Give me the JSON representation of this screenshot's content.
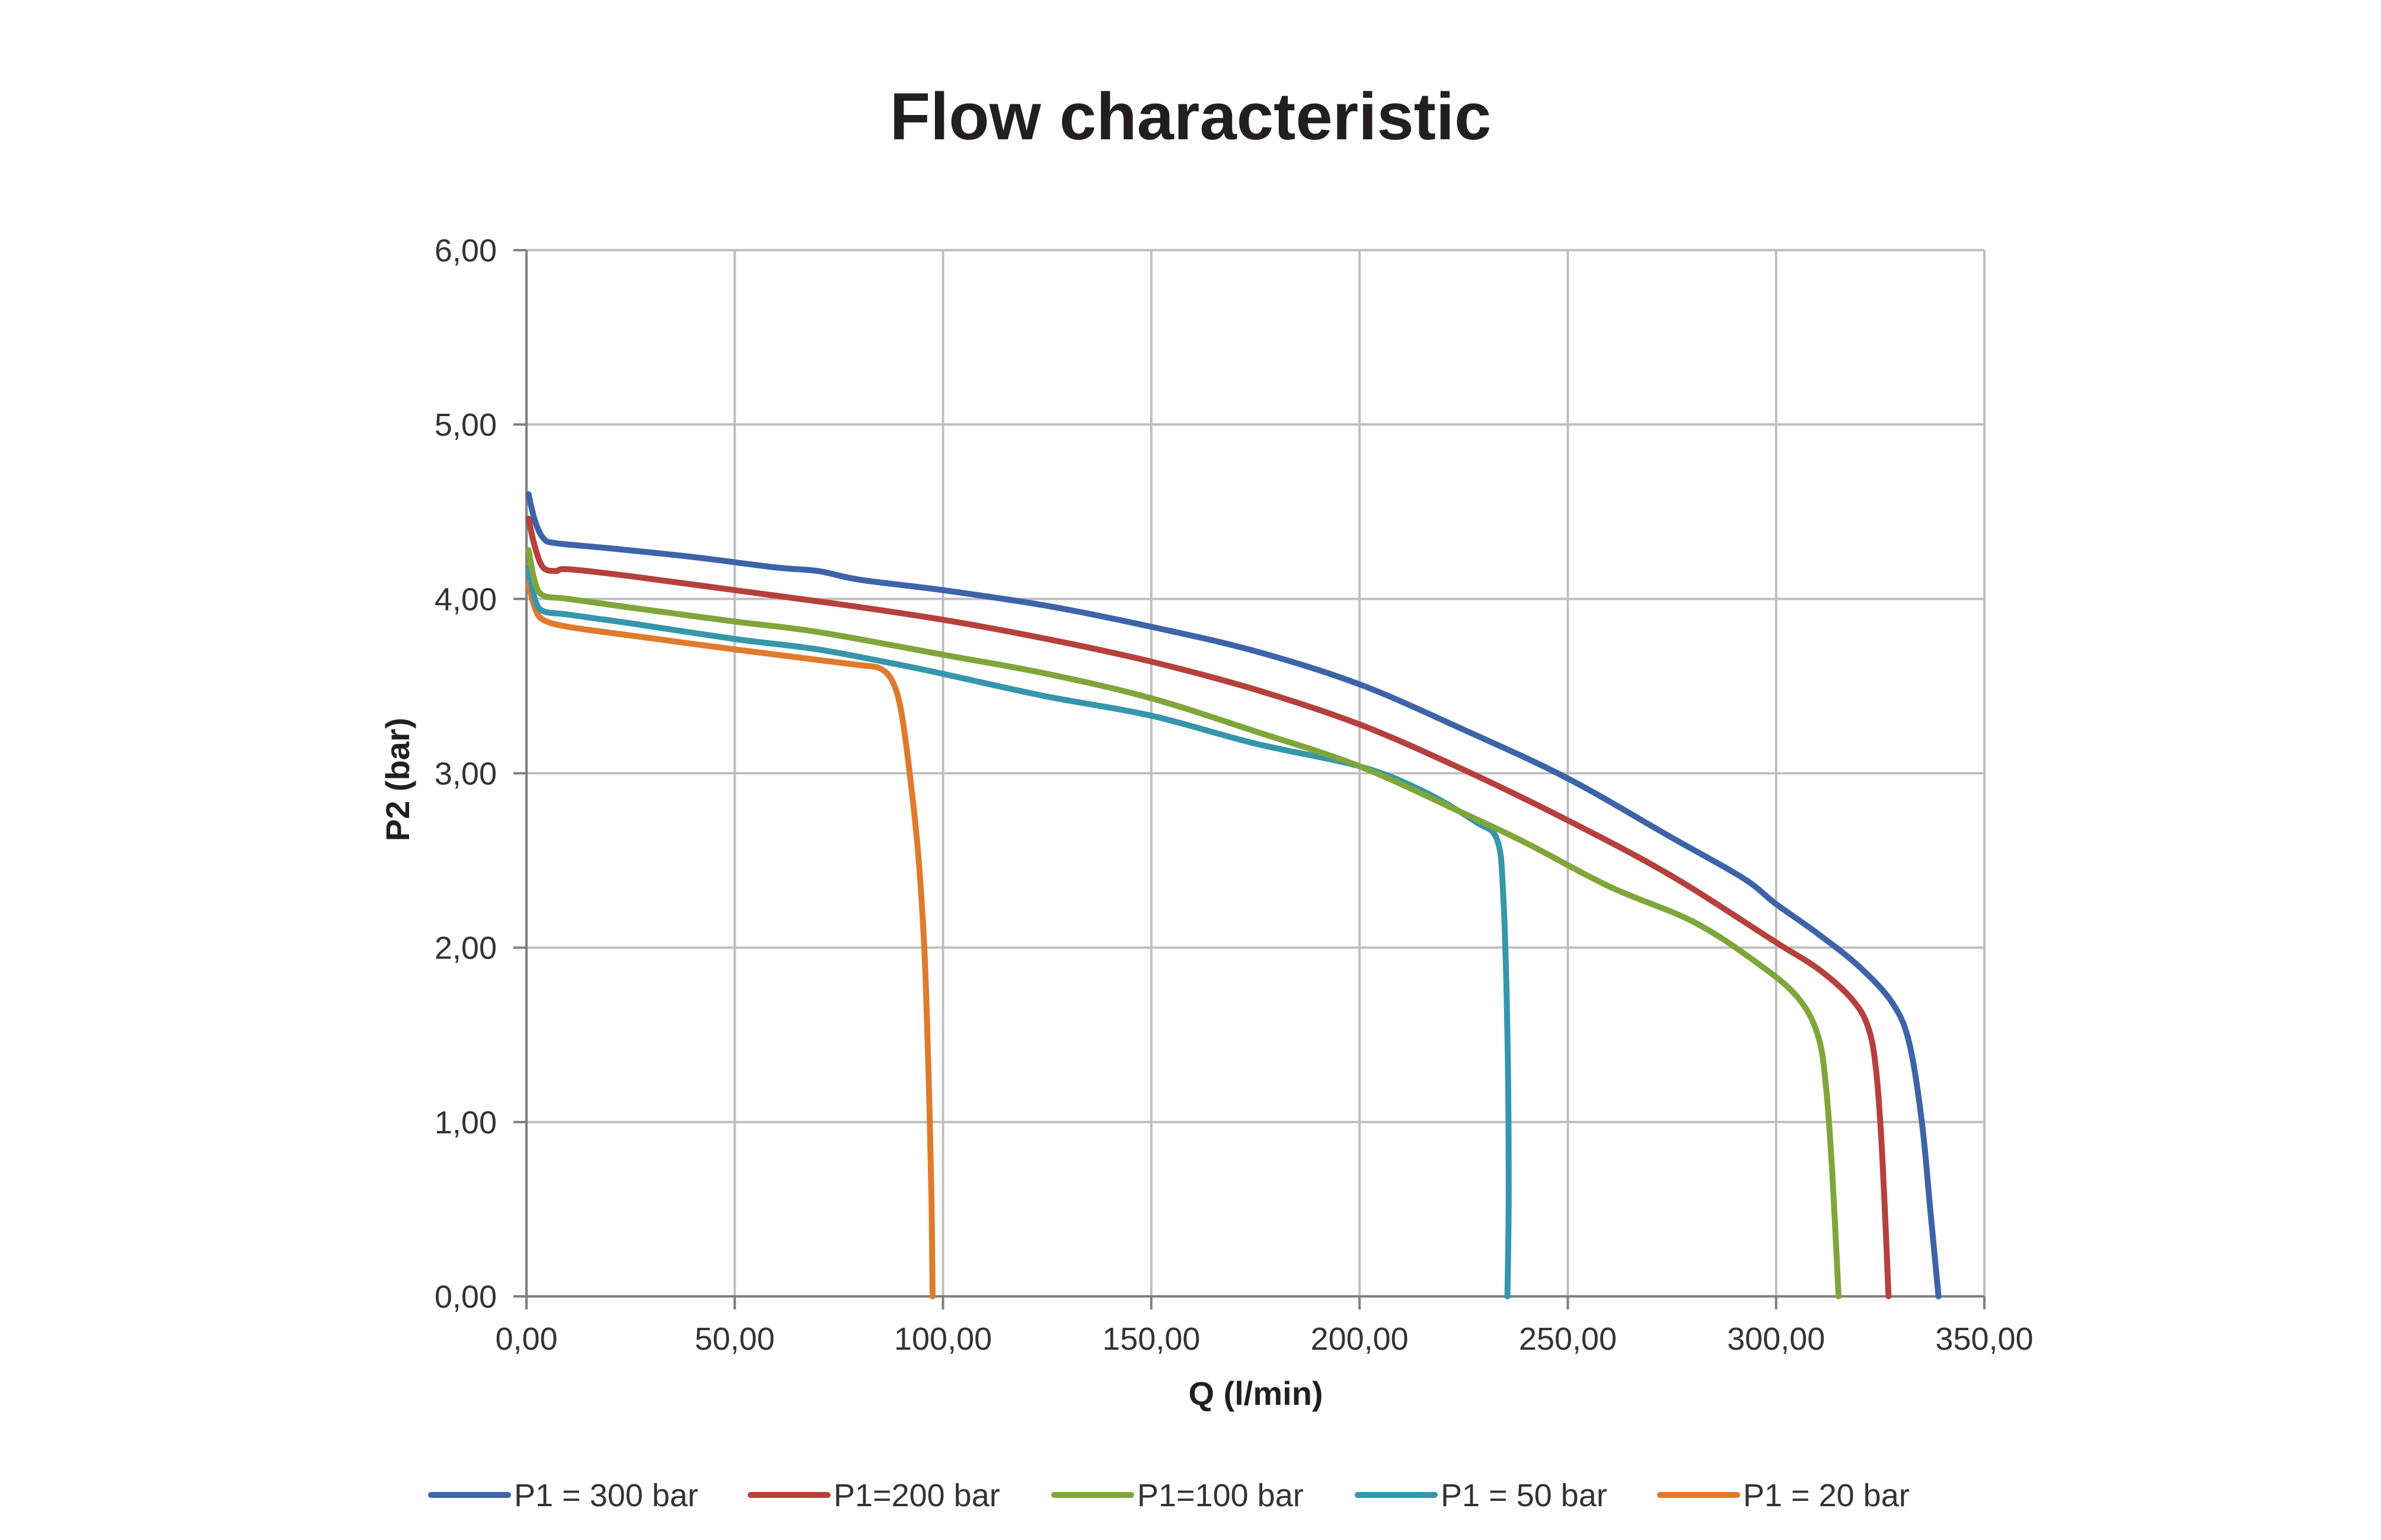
{
  "chart_data": {
    "type": "line",
    "title": "Flow characteristic",
    "xlabel": "Q (l/min)",
    "ylabel": "P2 (bar)",
    "xlim": [
      0,
      350
    ],
    "ylim": [
      0,
      6
    ],
    "x_ticks": [
      "0,00",
      "50,00",
      "100,00",
      "150,00",
      "200,00",
      "250,00",
      "300,00",
      "350,00"
    ],
    "y_ticks": [
      "0,00",
      "1,00",
      "2,00",
      "3,00",
      "4,00",
      "5,00",
      "6,00"
    ],
    "grid": true,
    "legend_position": "bottom",
    "series": [
      {
        "name": "P1 = 300 bar",
        "color": "#3d64a8",
        "points": [
          [
            0.5,
            4.6
          ],
          [
            2,
            4.45
          ],
          [
            4,
            4.35
          ],
          [
            7,
            4.32
          ],
          [
            20,
            4.29
          ],
          [
            40,
            4.24
          ],
          [
            60,
            4.18
          ],
          [
            70,
            4.16
          ],
          [
            80,
            4.11
          ],
          [
            100,
            4.05
          ],
          [
            125,
            3.96
          ],
          [
            150,
            3.84
          ],
          [
            175,
            3.7
          ],
          [
            200,
            3.51
          ],
          [
            225,
            3.25
          ],
          [
            250,
            2.97
          ],
          [
            275,
            2.63
          ],
          [
            292,
            2.4
          ],
          [
            300,
            2.25
          ],
          [
            310,
            2.08
          ],
          [
            320,
            1.89
          ],
          [
            328,
            1.68
          ],
          [
            332,
            1.45
          ],
          [
            335,
            1.0
          ],
          [
            337,
            0.5
          ],
          [
            339,
            0.0
          ]
        ]
      },
      {
        "name": "P1=200 bar",
        "color": "#b6403c",
        "points": [
          [
            0.5,
            4.46
          ],
          [
            2,
            4.3
          ],
          [
            4,
            4.18
          ],
          [
            7,
            4.16
          ],
          [
            10,
            4.17
          ],
          [
            25,
            4.13
          ],
          [
            50,
            4.05
          ],
          [
            75,
            3.97
          ],
          [
            100,
            3.88
          ],
          [
            125,
            3.77
          ],
          [
            150,
            3.64
          ],
          [
            175,
            3.48
          ],
          [
            200,
            3.28
          ],
          [
            225,
            3.02
          ],
          [
            250,
            2.73
          ],
          [
            275,
            2.41
          ],
          [
            300,
            2.03
          ],
          [
            310,
            1.88
          ],
          [
            318,
            1.71
          ],
          [
            322,
            1.55
          ],
          [
            324,
            1.3
          ],
          [
            325.5,
            0.8
          ],
          [
            327,
            0.0
          ]
        ]
      },
      {
        "name": "P1=100 bar",
        "color": "#7fa63b",
        "points": [
          [
            0.5,
            4.28
          ],
          [
            2,
            4.1
          ],
          [
            4,
            4.02
          ],
          [
            10,
            4.0
          ],
          [
            25,
            3.95
          ],
          [
            50,
            3.87
          ],
          [
            70,
            3.81
          ],
          [
            100,
            3.68
          ],
          [
            125,
            3.57
          ],
          [
            150,
            3.43
          ],
          [
            175,
            3.24
          ],
          [
            200,
            3.04
          ],
          [
            225,
            2.77
          ],
          [
            240,
            2.6
          ],
          [
            260,
            2.35
          ],
          [
            280,
            2.15
          ],
          [
            295,
            1.92
          ],
          [
            305,
            1.72
          ],
          [
            310,
            1.5
          ],
          [
            312,
            1.2
          ],
          [
            313.5,
            0.7
          ],
          [
            315,
            0.0
          ]
        ]
      },
      {
        "name": "P1 = 50 bar",
        "color": "#3596ac",
        "points": [
          [
            0.5,
            4.18
          ],
          [
            2,
            4.0
          ],
          [
            4,
            3.93
          ],
          [
            10,
            3.91
          ],
          [
            25,
            3.86
          ],
          [
            50,
            3.77
          ],
          [
            70,
            3.71
          ],
          [
            90,
            3.62
          ],
          [
            100,
            3.57
          ],
          [
            125,
            3.44
          ],
          [
            150,
            3.33
          ],
          [
            175,
            3.17
          ],
          [
            200,
            3.04
          ],
          [
            215,
            2.9
          ],
          [
            228,
            2.72
          ],
          [
            233,
            2.62
          ],
          [
            234.5,
            2.3
          ],
          [
            235.5,
            1.5
          ],
          [
            235.8,
            0.6
          ],
          [
            235.5,
            0.0
          ]
        ]
      },
      {
        "name": "P1 = 20 bar",
        "color": "#e07a2c",
        "points": [
          [
            0.5,
            4.08
          ],
          [
            2,
            3.95
          ],
          [
            4,
            3.88
          ],
          [
            10,
            3.84
          ],
          [
            25,
            3.79
          ],
          [
            50,
            3.71
          ],
          [
            70,
            3.65
          ],
          [
            80,
            3.62
          ],
          [
            85,
            3.6
          ],
          [
            88,
            3.52
          ],
          [
            90,
            3.35
          ],
          [
            92,
            3.0
          ],
          [
            94,
            2.55
          ],
          [
            95.5,
            2.0
          ],
          [
            96.5,
            1.3
          ],
          [
            97.2,
            0.6
          ],
          [
            97.5,
            0.0
          ]
        ]
      }
    ]
  }
}
